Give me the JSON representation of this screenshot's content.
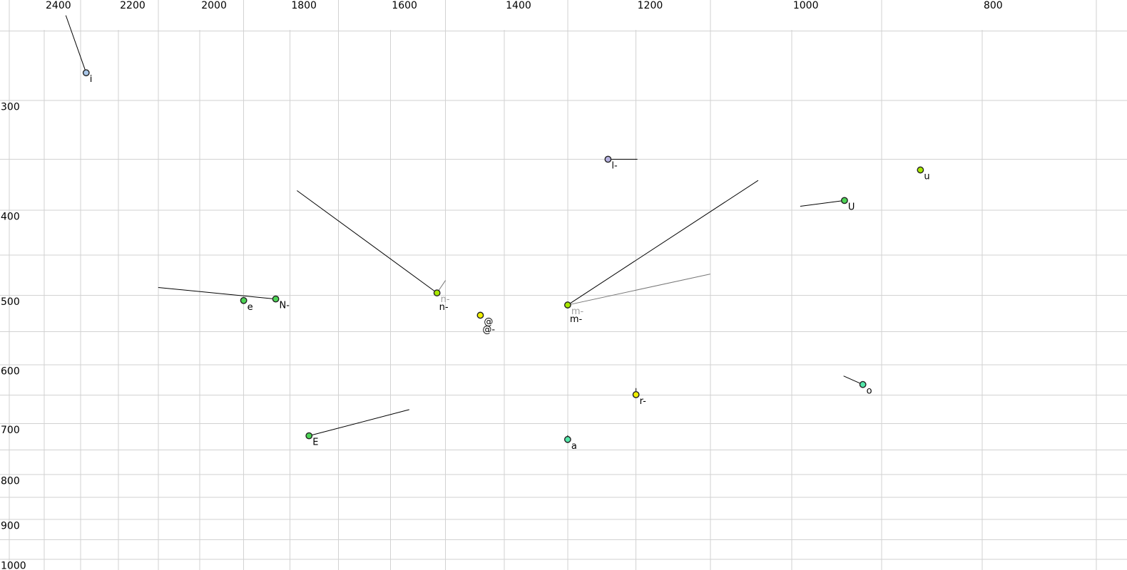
{
  "chart_data": {
    "type": "scatter",
    "title": "",
    "x_axis": {
      "scale": "log",
      "direction": "values-decrease-rightward",
      "visible_range": [
        2527,
        675
      ],
      "label_values": [
        2400,
        2200,
        2000,
        1800,
        1600,
        1400,
        1200,
        1000,
        800
      ],
      "grid_min": 700,
      "grid_max": 2500,
      "grid_step": 100
    },
    "y_axis": {
      "scale": "log",
      "direction": "values-increase-downward",
      "visible_range": [
        228,
        1010
      ],
      "label_values": [
        300,
        400,
        500,
        600,
        700,
        800,
        900,
        1000
      ],
      "grid_min": 250,
      "grid_max": 1000,
      "grid_step": 50
    },
    "grid": true,
    "legend": false,
    "points": [
      {
        "id": "i",
        "f2": 2285,
        "f1": 279,
        "color": "blue",
        "labels": [
          {
            "text": "i",
            "color": "black"
          }
        ],
        "lines": [
          {
            "f2": 2340,
            "f1": 240,
            "color": "black"
          }
        ]
      },
      {
        "id": "l-",
        "f2": 1240,
        "f1": 350,
        "color": "lavender",
        "labels": [
          {
            "text": "l-",
            "color": "black"
          }
        ],
        "lines": [
          {
            "f2": 1198,
            "f1": 350,
            "color": "black"
          }
        ]
      },
      {
        "id": "u",
        "f2": 860,
        "f1": 360,
        "color": "chartreuse",
        "labels": [
          {
            "text": "u",
            "color": "black"
          }
        ],
        "lines": []
      },
      {
        "id": "U",
        "f2": 940,
        "f1": 390,
        "color": "green",
        "labels": [
          {
            "text": "U",
            "color": "black"
          }
        ],
        "lines": [
          {
            "f2": 990,
            "f1": 396,
            "color": "black"
          }
        ]
      },
      {
        "id": "e",
        "f2": 1900,
        "f1": 507,
        "color": "green",
        "labels": [
          {
            "text": "e",
            "color": "black"
          }
        ],
        "lines": []
      },
      {
        "id": "N-",
        "f2": 1830,
        "f1": 505,
        "color": "green",
        "labels": [
          {
            "text": "N-",
            "color": "black"
          }
        ],
        "lines": [
          {
            "f2": 2100,
            "f1": 490,
            "color": "black"
          }
        ]
      },
      {
        "id": "n-",
        "f2": 1515,
        "f1": 497,
        "color": "chartreuse",
        "labels": [
          {
            "text": "n-",
            "color": "gray"
          },
          {
            "text": "n-",
            "color": "black"
          }
        ],
        "lines": [
          {
            "f2": 1785,
            "f1": 380,
            "color": "black"
          },
          {
            "f2": 1500,
            "f1": 481,
            "color": "gray"
          }
        ]
      },
      {
        "id": "@",
        "f2": 1440,
        "f1": 527,
        "color": "yellow",
        "labels": [
          {
            "text": "@",
            "color": "black"
          },
          {
            "text": "@-",
            "color": "black"
          }
        ],
        "lines": []
      },
      {
        "id": "m-",
        "f2": 1300,
        "f1": 513,
        "color": "chartreuse",
        "labels": [
          {
            "text": "m-",
            "color": "gray"
          },
          {
            "text": "m-",
            "color": "black"
          }
        ],
        "lines": [
          {
            "f2": 1040,
            "f1": 370,
            "color": "black"
          },
          {
            "f2": 1100,
            "f1": 473,
            "color": "gray"
          }
        ]
      },
      {
        "id": "r-",
        "f2": 1200,
        "f1": 649,
        "color": "yellow",
        "labels": [
          {
            "text": "r-",
            "color": "black"
          }
        ],
        "lines": [
          {
            "f2": 1200,
            "f1": 638,
            "color": "black"
          }
        ]
      },
      {
        "id": "o",
        "f2": 920,
        "f1": 632,
        "color": "aquamarine",
        "labels": [
          {
            "text": "o",
            "color": "black"
          }
        ],
        "lines": [
          {
            "f2": 941,
            "f1": 618,
            "color": "black"
          }
        ]
      },
      {
        "id": "E",
        "f2": 1760,
        "f1": 723,
        "color": "green",
        "labels": [
          {
            "text": "E",
            "color": "black"
          }
        ],
        "lines": [
          {
            "f2": 1565,
            "f1": 675,
            "color": "black"
          }
        ]
      },
      {
        "id": "a",
        "f2": 1300,
        "f1": 730,
        "color": "aquamarine",
        "labels": [
          {
            "text": "a",
            "color": "black"
          }
        ],
        "lines": [
          {
            "f2": 1300,
            "f1": 722,
            "color": "black"
          }
        ]
      }
    ]
  },
  "palette": {
    "blue": "#a9c6e8",
    "lavender": "#b5b1e0",
    "chartreuse": "#a8e800",
    "yellow": "#f0f000",
    "green": "#4cd455",
    "aquamarine": "#54e7aa",
    "point_stroke": "#222222",
    "grid": "#d2d2d2",
    "line_black": "#000000",
    "line_gray": "#777777",
    "label_black": "#000000",
    "label_gray": "#9e9e9e",
    "background": "#ffffff"
  }
}
